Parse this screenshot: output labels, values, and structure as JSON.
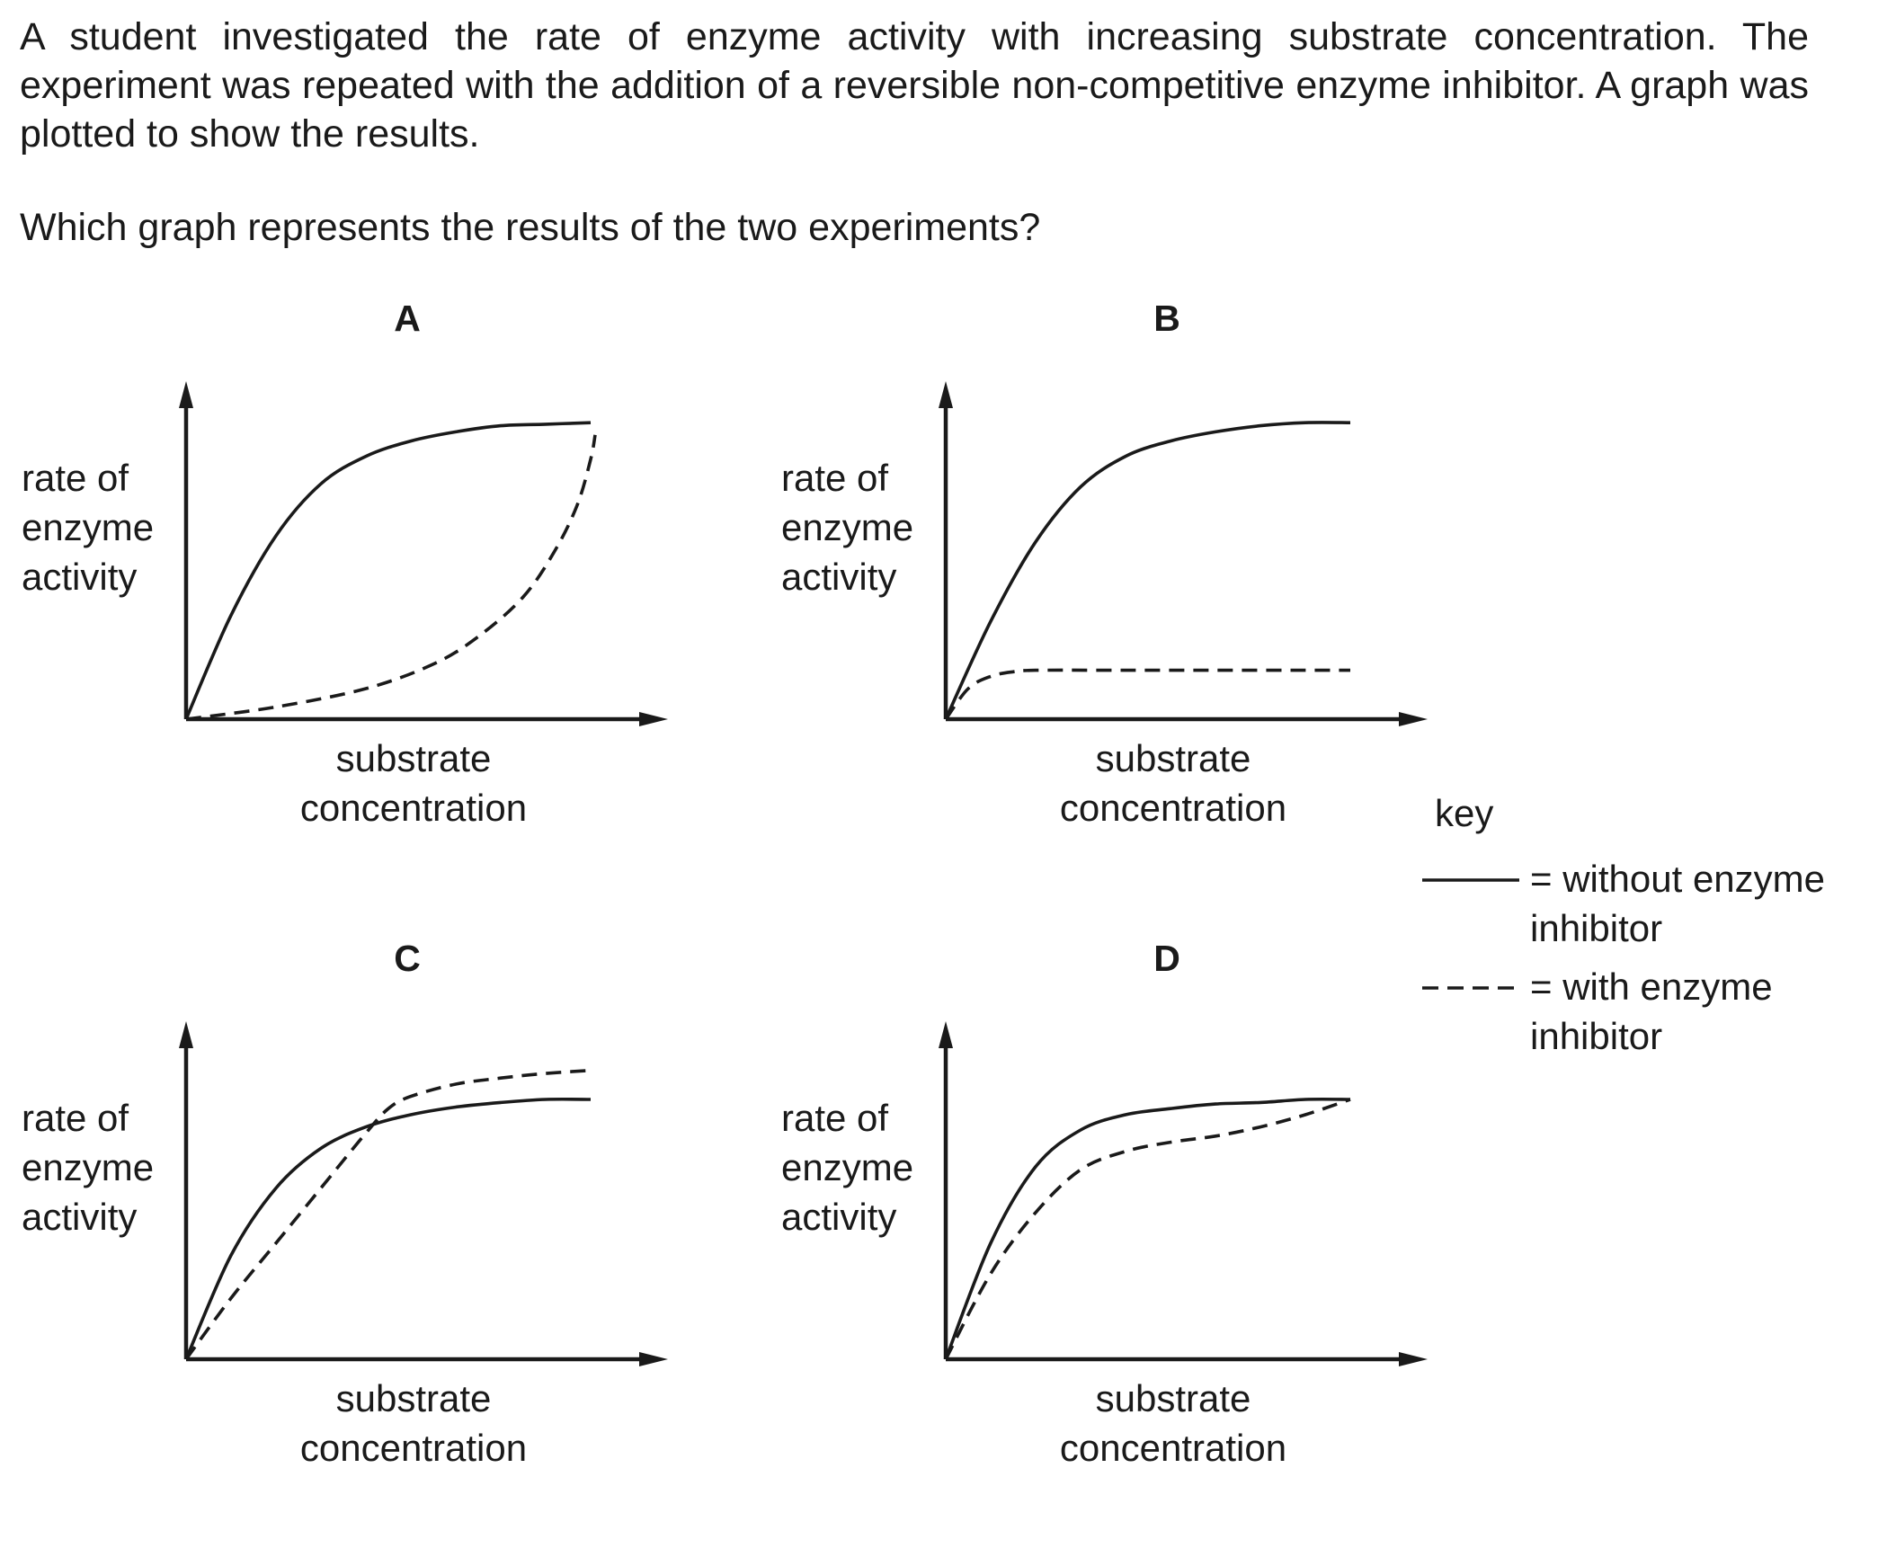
{
  "question": {
    "text": "A student investigated the rate of enzyme activity with increasing substrate concentration. The experiment was repeated with the addition of a reversible non-competitive enzyme inhibitor. A graph was plotted to show the results.",
    "prompt": "Which graph represents the results of the two experiments?"
  },
  "axis_labels": {
    "y": "rate of enzyme activity",
    "x": "substrate concentration"
  },
  "key": {
    "title": "key",
    "solid": "= without enzyme inhibitor",
    "dashed": "= with enzyme inhibitor"
  },
  "chart_data": [
    {
      "type": "line",
      "label": "A",
      "xlabel": "substrate concentration",
      "ylabel": "rate of enzyme activity",
      "xlim": [
        0,
        100
      ],
      "ylim": [
        0,
        100
      ],
      "series": [
        {
          "name": "= without enzyme inhibitor",
          "style": "solid",
          "x": [
            0,
            10,
            20,
            30,
            40,
            50,
            60,
            70,
            80,
            90
          ],
          "y": [
            0,
            34,
            60,
            77,
            86,
            91,
            94,
            96,
            96.5,
            97
          ]
        },
        {
          "name": "= with enzyme inhibitor",
          "style": "dashed",
          "x": [
            0,
            20,
            40,
            55,
            65,
            75,
            82,
            87,
            90,
            91
          ],
          "y": [
            0,
            4,
            10,
            18,
            27,
            40,
            55,
            70,
            85,
            93
          ]
        }
      ]
    },
    {
      "type": "line",
      "label": "B",
      "xlabel": "substrate concentration",
      "ylabel": "rate of enzyme activity",
      "xlim": [
        0,
        100
      ],
      "ylim": [
        0,
        100
      ],
      "series": [
        {
          "name": "= without enzyme inhibitor",
          "style": "solid",
          "x": [
            0,
            10,
            20,
            30,
            40,
            50,
            60,
            70,
            80,
            90
          ],
          "y": [
            0,
            32,
            58,
            76,
            86,
            91,
            94,
            96,
            97,
            97
          ]
        },
        {
          "name": "= with enzyme inhibitor",
          "style": "dashed",
          "x": [
            0,
            5,
            10,
            15,
            20,
            40,
            60,
            80,
            90
          ],
          "y": [
            0,
            10,
            14,
            15.5,
            16,
            16,
            16,
            16,
            16
          ]
        }
      ]
    },
    {
      "type": "line",
      "label": "C",
      "xlabel": "substrate concentration",
      "ylabel": "rate of enzyme activity",
      "xlim": [
        0,
        100
      ],
      "ylim": [
        0,
        100
      ],
      "series": [
        {
          "name": "= without enzyme inhibitor",
          "style": "solid",
          "x": [
            0,
            10,
            20,
            30,
            40,
            50,
            60,
            70,
            80,
            90
          ],
          "y": [
            0,
            34,
            56,
            69,
            76,
            80,
            82.5,
            84,
            85,
            85
          ]
        },
        {
          "name": "= with enzyme inhibitor",
          "style": "dashed",
          "x": [
            0,
            10,
            20,
            30,
            40,
            45,
            50,
            60,
            70,
            80,
            90
          ],
          "y": [
            0,
            20,
            38,
            56,
            74,
            82,
            86,
            90,
            92,
            93.5,
            94.5
          ]
        }
      ]
    },
    {
      "type": "line",
      "label": "D",
      "xlabel": "substrate concentration",
      "ylabel": "rate of enzyme activity",
      "xlim": [
        0,
        100
      ],
      "ylim": [
        0,
        100
      ],
      "series": [
        {
          "name": "= without enzyme inhibitor",
          "style": "solid",
          "x": [
            0,
            10,
            20,
            30,
            40,
            50,
            60,
            70,
            80,
            90
          ],
          "y": [
            0,
            38,
            63,
            75,
            80,
            82,
            83.5,
            84,
            85,
            85
          ]
        },
        {
          "name": "= with enzyme inhibitor",
          "style": "dashed",
          "x": [
            0,
            10,
            20,
            30,
            40,
            50,
            60,
            70,
            80,
            90
          ],
          "y": [
            0,
            28,
            48,
            62,
            68,
            71,
            73,
            76,
            80,
            85
          ]
        }
      ]
    }
  ]
}
